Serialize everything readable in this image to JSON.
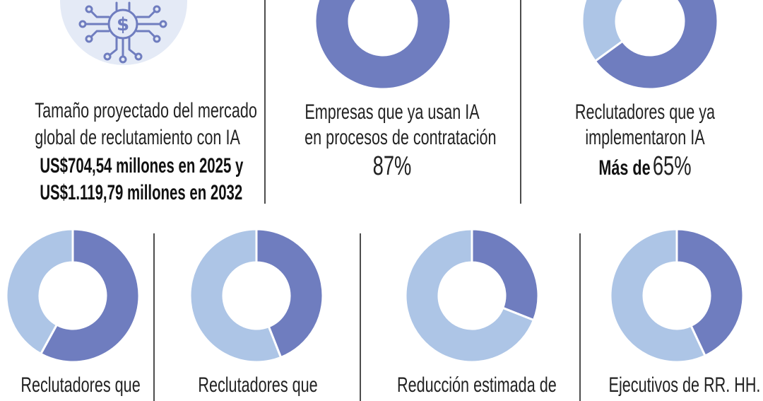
{
  "colors": {
    "dark": "#6f7dbf",
    "light": "#adc5e6",
    "icon_bg": "#e4eaf6",
    "icon_stroke": "#6f7dbf",
    "divider": "#4d4d4d"
  },
  "icon": "money-network-icon",
  "top": {
    "market": {
      "line1": "Tamaño proyectado del mercado",
      "line2": "global de reclutamiento con IA",
      "line3": "US$704,54 millones en 2025 y",
      "line4": "US$1.119,79 millones en 2032"
    },
    "companies": {
      "line1": "Empresas que ya usan IA",
      "line2": "en procesos de contratación",
      "value": "87%"
    },
    "recruiters": {
      "line1": "Reclutadores que ya",
      "line2": "implementaron IA",
      "prefix": "Más de",
      "value": "65%"
    }
  },
  "bottom": {
    "b1": {
      "line1": "Reclutadores que"
    },
    "b2": {
      "line1": "Reclutadores que"
    },
    "b3": {
      "line1": "Reducción estimada de"
    },
    "b4": {
      "line1": "Ejecutivos de RR. HH."
    }
  },
  "chart_data": [
    {
      "type": "pie",
      "name": "companies",
      "values": [
        87
      ],
      "unit": "%"
    },
    {
      "type": "pie",
      "name": "recruiters",
      "values": [
        65
      ],
      "unit": "%"
    },
    {
      "type": "pie",
      "name": "bottom-1",
      "values": [
        58
      ]
    },
    {
      "type": "pie",
      "name": "bottom-2",
      "values": [
        44
      ]
    },
    {
      "type": "pie",
      "name": "bottom-3",
      "values": [
        31
      ]
    },
    {
      "type": "pie",
      "name": "bottom-4",
      "values": [
        43
      ]
    }
  ]
}
